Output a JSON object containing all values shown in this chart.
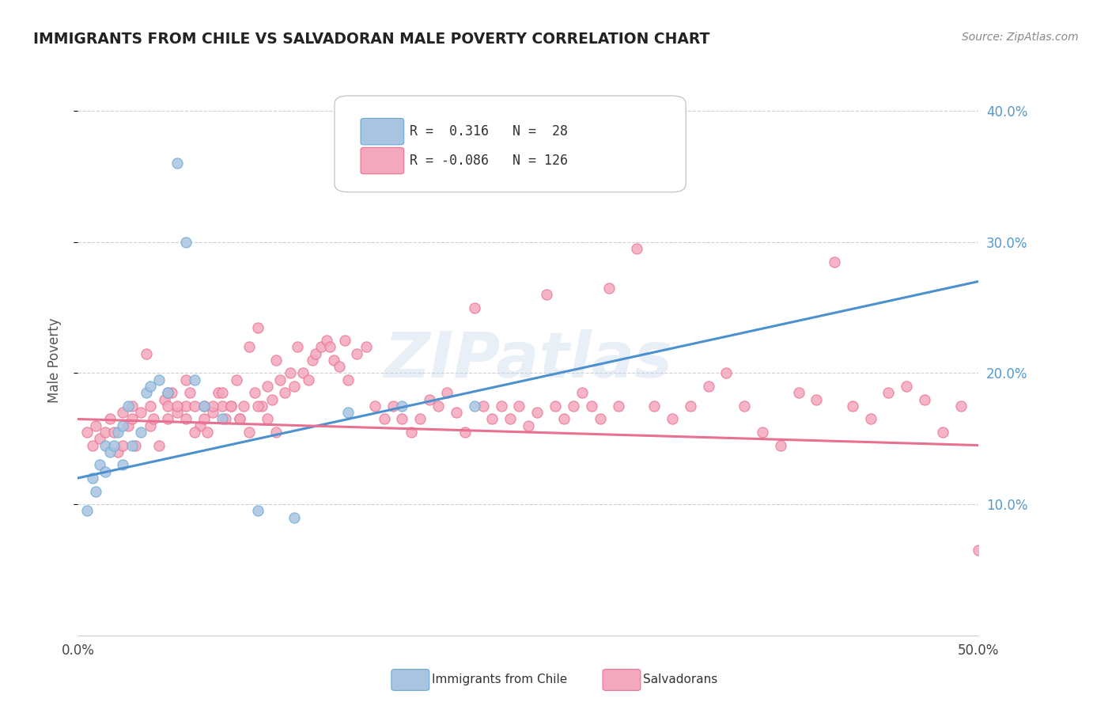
{
  "title": "IMMIGRANTS FROM CHILE VS SALVADORAN MALE POVERTY CORRELATION CHART",
  "source": "Source: ZipAtlas.com",
  "ylabel": "Male Poverty",
  "xlim": [
    0.0,
    0.5
  ],
  "ylim": [
    0.0,
    0.42
  ],
  "x_ticks": [
    0.0,
    0.1,
    0.2,
    0.3,
    0.4,
    0.5
  ],
  "x_tick_labels": [
    "0.0%",
    "",
    "",
    "",
    "",
    "50.0%"
  ],
  "y_ticks": [
    0.1,
    0.2,
    0.3,
    0.4
  ],
  "y_tick_labels_right": [
    "10.0%",
    "20.0%",
    "30.0%",
    "40.0%"
  ],
  "R_blue": 0.316,
  "N_blue": 28,
  "R_pink": -0.086,
  "N_pink": 126,
  "blue_scatter_color": "#a8c4e0",
  "blue_edge_color": "#6aaad4",
  "pink_scatter_color": "#f4a8be",
  "pink_edge_color": "#e87090",
  "blue_line_color": "#4d90d0",
  "pink_line_color": "#e87090",
  "right_tick_color": "#5599cc",
  "watermark": "ZIPatlas",
  "blue_line_start_y": 0.12,
  "blue_line_end_y": 0.27,
  "pink_line_start_y": 0.165,
  "pink_line_end_y": 0.145,
  "blue_x": [
    0.005,
    0.008,
    0.01,
    0.012,
    0.015,
    0.015,
    0.018,
    0.02,
    0.022,
    0.025,
    0.025,
    0.028,
    0.03,
    0.035,
    0.038,
    0.04,
    0.045,
    0.05,
    0.055,
    0.06,
    0.065,
    0.07,
    0.08,
    0.1,
    0.12,
    0.15,
    0.18,
    0.22
  ],
  "blue_y": [
    0.095,
    0.12,
    0.11,
    0.13,
    0.125,
    0.145,
    0.14,
    0.145,
    0.155,
    0.16,
    0.13,
    0.175,
    0.145,
    0.155,
    0.185,
    0.19,
    0.195,
    0.185,
    0.36,
    0.3,
    0.195,
    0.175,
    0.165,
    0.095,
    0.09,
    0.17,
    0.175,
    0.175
  ],
  "pink_x": [
    0.005,
    0.008,
    0.01,
    0.012,
    0.015,
    0.018,
    0.02,
    0.022,
    0.025,
    0.025,
    0.028,
    0.03,
    0.03,
    0.032,
    0.035,
    0.038,
    0.04,
    0.04,
    0.042,
    0.045,
    0.048,
    0.05,
    0.05,
    0.052,
    0.055,
    0.06,
    0.06,
    0.062,
    0.065,
    0.068,
    0.07,
    0.072,
    0.075,
    0.078,
    0.08,
    0.082,
    0.085,
    0.088,
    0.09,
    0.092,
    0.095,
    0.098,
    0.1,
    0.102,
    0.105,
    0.108,
    0.11,
    0.112,
    0.115,
    0.118,
    0.12,
    0.122,
    0.125,
    0.128,
    0.13,
    0.132,
    0.135,
    0.138,
    0.14,
    0.142,
    0.145,
    0.148,
    0.15,
    0.155,
    0.16,
    0.165,
    0.17,
    0.175,
    0.18,
    0.185,
    0.19,
    0.195,
    0.2,
    0.205,
    0.21,
    0.215,
    0.22,
    0.225,
    0.23,
    0.235,
    0.24,
    0.245,
    0.25,
    0.255,
    0.26,
    0.265,
    0.27,
    0.275,
    0.28,
    0.285,
    0.29,
    0.295,
    0.3,
    0.31,
    0.32,
    0.33,
    0.34,
    0.35,
    0.36,
    0.37,
    0.38,
    0.39,
    0.4,
    0.41,
    0.42,
    0.43,
    0.44,
    0.45,
    0.46,
    0.47,
    0.48,
    0.49,
    0.5,
    0.05,
    0.055,
    0.06,
    0.065,
    0.07,
    0.075,
    0.08,
    0.085,
    0.09,
    0.095,
    0.1,
    0.105,
    0.11
  ],
  "pink_y": [
    0.155,
    0.145,
    0.16,
    0.15,
    0.155,
    0.165,
    0.155,
    0.14,
    0.17,
    0.145,
    0.16,
    0.165,
    0.175,
    0.145,
    0.17,
    0.215,
    0.16,
    0.175,
    0.165,
    0.145,
    0.18,
    0.165,
    0.175,
    0.185,
    0.17,
    0.175,
    0.165,
    0.185,
    0.175,
    0.16,
    0.175,
    0.155,
    0.17,
    0.185,
    0.175,
    0.165,
    0.175,
    0.195,
    0.165,
    0.175,
    0.22,
    0.185,
    0.235,
    0.175,
    0.19,
    0.18,
    0.21,
    0.195,
    0.185,
    0.2,
    0.19,
    0.22,
    0.2,
    0.195,
    0.21,
    0.215,
    0.22,
    0.225,
    0.22,
    0.21,
    0.205,
    0.225,
    0.195,
    0.215,
    0.22,
    0.175,
    0.165,
    0.175,
    0.165,
    0.155,
    0.165,
    0.18,
    0.175,
    0.185,
    0.17,
    0.155,
    0.25,
    0.175,
    0.165,
    0.175,
    0.165,
    0.175,
    0.16,
    0.17,
    0.26,
    0.175,
    0.165,
    0.175,
    0.185,
    0.175,
    0.165,
    0.265,
    0.175,
    0.295,
    0.175,
    0.165,
    0.175,
    0.19,
    0.2,
    0.175,
    0.155,
    0.145,
    0.185,
    0.18,
    0.285,
    0.175,
    0.165,
    0.185,
    0.19,
    0.18,
    0.155,
    0.175,
    0.065,
    0.185,
    0.175,
    0.195,
    0.155,
    0.165,
    0.175,
    0.185,
    0.175,
    0.165,
    0.155,
    0.175,
    0.165,
    0.155
  ]
}
